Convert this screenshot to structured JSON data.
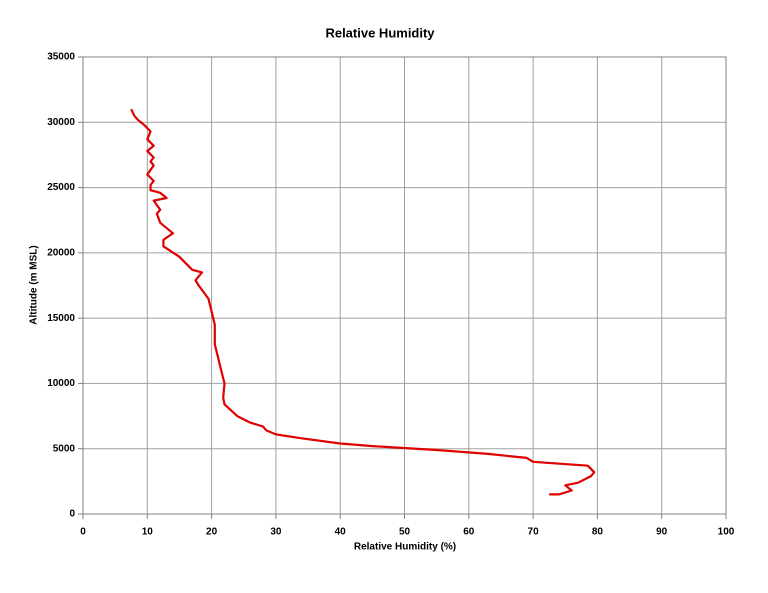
{
  "chart_data": {
    "type": "line",
    "title": "Relative Humidity",
    "x_label": "Relative Humidity (%)",
    "y_label": "Altitude (m MSL)",
    "color": "#e00000",
    "grid": true,
    "xlim": [
      0,
      100
    ],
    "xticks": [
      0,
      10,
      20,
      30,
      40,
      50,
      60,
      70,
      80,
      90,
      100
    ],
    "ylim": [
      0,
      35000
    ],
    "yticks": [
      0,
      5000,
      10000,
      15000,
      20000,
      25000,
      30000,
      35000
    ],
    "x": [
      72.5,
      74,
      76,
      75,
      77,
      79,
      79.5,
      78.5,
      70,
      69,
      63,
      55,
      45,
      40,
      34,
      30,
      28.5,
      28,
      26,
      24,
      22,
      21.8,
      22,
      21.5,
      21,
      20.5,
      20.5,
      20,
      19.5,
      18,
      17.5,
      18.5,
      17,
      15,
      12.5,
      12.5,
      14,
      12,
      11.5,
      12,
      11,
      13,
      12,
      10.5,
      10.5,
      11,
      10,
      11,
      10.5,
      11,
      10,
      11,
      10,
      10.5,
      9.5,
      8.5,
      8,
      7.5
    ],
    "values": [
      1500,
      1500,
      1800,
      2200,
      2400,
      2900,
      3200,
      3700,
      4000,
      4300,
      4600,
      4900,
      5200,
      5400,
      5800,
      6100,
      6400,
      6700,
      7000,
      7500,
      8400,
      8900,
      10000,
      11000,
      12000,
      13000,
      14500,
      15500,
      16500,
      17500,
      17900,
      18500,
      18700,
      19700,
      20500,
      21000,
      21500,
      22300,
      23000,
      23300,
      24000,
      24200,
      24600,
      24800,
      25200,
      25500,
      26000,
      26700,
      27000,
      27300,
      27800,
      28200,
      28700,
      29300,
      29800,
      30200,
      30500,
      31000
    ]
  }
}
